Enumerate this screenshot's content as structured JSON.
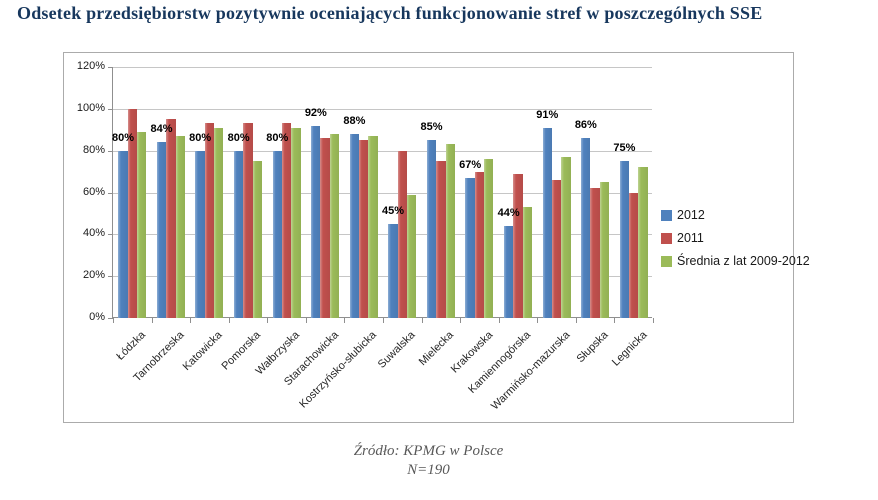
{
  "title": "Odsetek przedsiębiorstw pozytywnie oceniających funkcjonowanie stref w poszczególnych SSE",
  "footer": {
    "source": "Źródło: KPMG w Polsce",
    "sample": "N=190"
  },
  "colors": {
    "title_text": "#17375D",
    "footer_text": "#595959",
    "grid": "#C6C6C6",
    "axis": "#8F8F8F"
  },
  "chart_data": {
    "type": "bar",
    "title": "Odsetek przedsiębiorstw pozytywnie oceniających funkcjonowanie stref w poszczególnych SSE",
    "xlabel": "",
    "ylabel": "",
    "ylim": [
      0,
      120
    ],
    "y_ticks": [
      "0%",
      "20%",
      "40%",
      "60%",
      "80%",
      "100%",
      "120%"
    ],
    "grid": true,
    "legend_position": "right",
    "categories": [
      "Łódzka",
      "Tarnobrzeska",
      "Katowicka",
      "Pomorska",
      "Wałbrzyska",
      "Starachowicka",
      "Kostrzyńsko-słubicka",
      "Suwalska",
      "Mielecka",
      "Krakowska",
      "Kamiennogórska",
      "Warmińsko-mazurska",
      "Słupska",
      "Legnicka"
    ],
    "series": [
      {
        "name": "2012",
        "color": "#4F81BD",
        "values": [
          80,
          84,
          80,
          80,
          80,
          92,
          88,
          45,
          85,
          67,
          44,
          91,
          86,
          75
        ],
        "labels": [
          "80%",
          "84%",
          "80%",
          "80%",
          "80%",
          "92%",
          "88%",
          "45%",
          "85%",
          "67%",
          "44%",
          "91%",
          "86%",
          "75%"
        ]
      },
      {
        "name": "2011",
        "color": "#C0504D",
        "values": [
          100,
          95,
          93,
          93,
          93,
          86,
          85,
          80,
          75,
          70,
          69,
          66,
          62,
          60
        ]
      },
      {
        "name": "Średnia z lat 2009-2012",
        "color": "#9BBB59",
        "values": [
          89,
          87,
          91,
          75,
          91,
          88,
          87,
          59,
          83,
          76,
          53,
          77,
          65,
          72
        ]
      }
    ]
  }
}
